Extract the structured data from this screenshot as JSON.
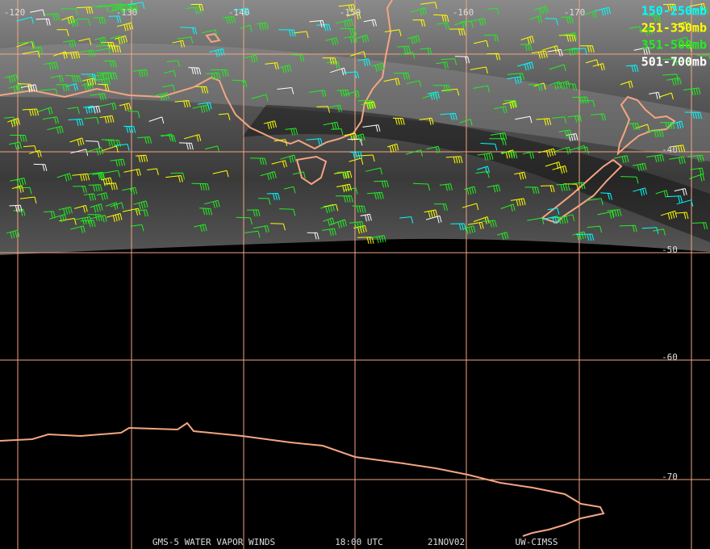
{
  "map": {
    "longitude_labels": [
      "-120",
      "-130",
      "-140",
      "-150",
      "-160",
      "-170"
    ],
    "latitude_labels": [
      "-40",
      "-50",
      "-60",
      "-70"
    ],
    "legend": [
      {
        "label": "150-250mb",
        "color": "#00ffff"
      },
      {
        "label": "251-350mb",
        "color": "#ffff00"
      },
      {
        "label": "351-500mb",
        "color": "#22ee22"
      },
      {
        "label": "501-700mb",
        "color": "#ffffff"
      }
    ],
    "footer": [
      "GMS-5 WATER VAPOR WINDS",
      "18:00 UTC",
      "21NOV02",
      "UW-CIMSS"
    ]
  }
}
